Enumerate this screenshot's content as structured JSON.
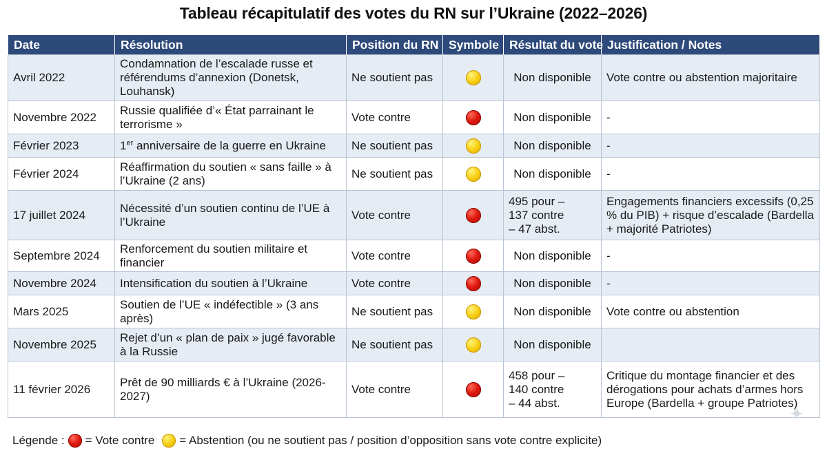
{
  "title": "Tableau récapitulatif des votes du RN sur l’Ukraine (2022–2026)",
  "columns": [
    "Date",
    "Résolution",
    "Position du RN",
    "Symbole",
    "Résultat du vote",
    "Justification / Notes"
  ],
  "rows": [
    {
      "date": "Avril 2022",
      "resolution": "Condamnation de l’escalade russe et référendums d’annexion (Donetsk, Louhansk)",
      "position": "Ne soutient pas",
      "symbol": "yellow-circle-icon",
      "result": "Non disponible",
      "notes": "Vote contre ou abstention majoritaire"
    },
    {
      "date": "Novembre 2022",
      "resolution": "Russie qualifiée d’« État parrainant le terrorisme »",
      "position": "Vote contre",
      "symbol": "red-circle-icon",
      "result": "Non disponible",
      "notes": "-"
    },
    {
      "date": "Février 2023",
      "resolution_sup": "er",
      "resolution_pre": "1",
      "resolution": " anniversaire de la guerre en Ukraine",
      "position": "Ne soutient pas",
      "symbol": "yellow-circle-icon",
      "result": "Non disponible",
      "notes": "-"
    },
    {
      "date": "Février 2024",
      "resolution": "Réaffirmation du soutien « sans faille » à l’Ukraine (2 ans)",
      "position": "Ne soutient pas",
      "symbol": "yellow-circle-icon",
      "result": "Non disponible",
      "notes": "-"
    },
    {
      "date": "17 juillet 2024",
      "resolution": "Nécessité d’un soutien continu de l’UE à l’Ukraine",
      "position": "Vote contre",
      "symbol": "red-circle-icon",
      "result": "495 pour – 137 contre – 47 abst.",
      "notes": "Engagements financiers excessifs (0,25 % du PIB) + risque d’escalade (Bardella + majorité Patriotes)"
    },
    {
      "date": "Septembre 2024",
      "resolution": "Renforcement du soutien militaire et financier",
      "position": "Vote contre",
      "symbol": "red-circle-icon",
      "result": "Non disponible",
      "notes": "-"
    },
    {
      "date": "Novembre 2024",
      "resolution": "Intensification du soutien à l’Ukraine",
      "position": "Vote contre",
      "symbol": "red-circle-icon",
      "result": "Non disponible",
      "notes": "-"
    },
    {
      "date": "Mars 2025",
      "resolution": "Soutien de l’UE « indéfectible » (3 ans après)",
      "position": "Ne soutient pas",
      "symbol": "yellow-circle-icon",
      "result": "Non disponible",
      "notes": "Vote contre ou abstention"
    },
    {
      "date": "Novembre 2025",
      "resolution": "Rejet d’un « plan de paix » jugé favorable à la Russie",
      "position": "Ne soutient pas",
      "symbol": "yellow-circle-icon",
      "result": "Non disponible",
      "notes": ""
    },
    {
      "date": "11 février 2026",
      "resolution": "Prêt de 90 milliards € à l’Ukraine (2026-2027)",
      "position": "Vote contre",
      "symbol": "red-circle-icon",
      "result": "458 pour – 140 contre – 44 abst.",
      "notes": "Critique du montage financier et des dérogations pour achats d’armes hors Europe (Bardella + groupe Patriotes)"
    }
  ],
  "legend": {
    "prefix": "Légende :",
    "red_label": "= Vote contre",
    "yellow_label": "= Abstention (ou ne soutient pas / position d’opposition sans vote contre explicite)"
  },
  "colors": {
    "header_bg": "#2e4a7a",
    "stripe": "#e6ecf4",
    "red": "#e01a10",
    "yellow": "#f7cf14"
  }
}
